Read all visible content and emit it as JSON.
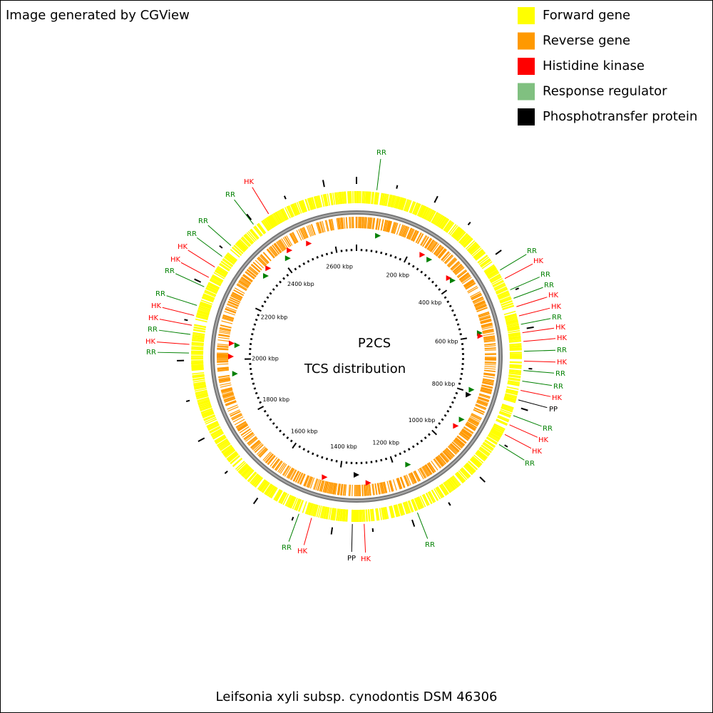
{
  "header": {
    "credit": "Image generated by CGView"
  },
  "legend": [
    {
      "label": "Forward gene",
      "color": "#ffff00"
    },
    {
      "label": "Reverse gene",
      "color": "#ff9900"
    },
    {
      "label": "Histidine kinase",
      "color": "#ff0000"
    },
    {
      "label": "Response regulator",
      "color": "#80c080"
    },
    {
      "label": "Phosphotransfer protein",
      "color": "#000000"
    }
  ],
  "center": {
    "title": "P2CS",
    "subtitle": "TCS distribution"
  },
  "footer": {
    "organism": "Leifsonia xyli subsp. cynodontis DSM 46306"
  },
  "ruler": {
    "labels": [
      "200 kbp",
      "400 kbp",
      "600 kbp",
      "800 kbp",
      "1000 kbp",
      "1200 kbp",
      "1400 kbp",
      "1600 kbp",
      "1800 kbp",
      "2000 kbp",
      "2200 kbp",
      "2400 kbp",
      "2600 kbp"
    ]
  },
  "features": [
    {
      "label": "RR",
      "color": "#008000"
    },
    {
      "label": "HK",
      "color": "#ff0000"
    },
    {
      "label": "RR",
      "color": "#008000"
    },
    {
      "label": "RR",
      "color": "#008000"
    },
    {
      "label": "RR",
      "color": "#008000"
    },
    {
      "label": "HK",
      "color": "#ff0000"
    },
    {
      "label": "HK",
      "color": "#ff0000"
    },
    {
      "label": "RR",
      "color": "#008000"
    },
    {
      "label": "RR",
      "color": "#008000"
    },
    {
      "label": "HK",
      "color": "#ff0000"
    },
    {
      "label": "HK",
      "color": "#ff0000"
    },
    {
      "label": "RR",
      "color": "#008000"
    },
    {
      "label": "HK",
      "color": "#ff0000"
    },
    {
      "label": "RR",
      "color": "#008000"
    },
    {
      "label": "RR",
      "color": "#008000"
    },
    {
      "label": "HK",
      "color": "#ff0000"
    },
    {
      "label": "RR",
      "color": "#008000"
    },
    {
      "label": "RR",
      "color": "#008000"
    },
    {
      "label": "HK",
      "color": "#ff0000"
    },
    {
      "label": "HK",
      "color": "#ff0000"
    },
    {
      "label": "RR",
      "color": "#008000"
    },
    {
      "label": "HK",
      "color": "#ff0000"
    },
    {
      "label": "HK",
      "color": "#ff0000"
    },
    {
      "label": "RR",
      "color": "#008000"
    },
    {
      "label": "HK",
      "color": "#ff0000"
    },
    {
      "label": "RR",
      "color": "#008000"
    },
    {
      "label": "RR",
      "color": "#008000"
    },
    {
      "label": "HK",
      "color": "#ff0000"
    },
    {
      "label": "PP",
      "color": "#000000"
    },
    {
      "label": "RR",
      "color": "#008000"
    },
    {
      "label": "HK",
      "color": "#ff0000"
    },
    {
      "label": "HK",
      "color": "#ff0000"
    },
    {
      "label": "RR",
      "color": "#008000"
    },
    {
      "label": "RR",
      "color": "#008000"
    },
    {
      "label": "HK",
      "color": "#ff0000"
    },
    {
      "label": "PP",
      "color": "#000000"
    },
    {
      "label": "HK",
      "color": "#ff0000"
    },
    {
      "label": "RR",
      "color": "#008000"
    }
  ]
}
